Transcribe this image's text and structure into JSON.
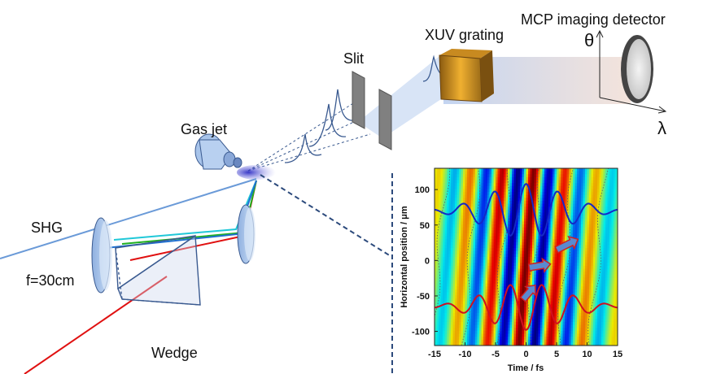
{
  "labels": {
    "mcp": "MCP imaging detector",
    "xuv": "XUV grating",
    "slit": "Slit",
    "gasjet": "Gas jet",
    "shg": "SHG",
    "focal": "f=30cm",
    "wedge": "Wedge",
    "theta": "θ",
    "lambda": "λ"
  },
  "chart_data": {
    "type": "heatmap",
    "xlabel": "Time / fs",
    "ylabel": "Horizontal position / μm",
    "xlim": [
      -15,
      15
    ],
    "ylim": [
      -120,
      130
    ],
    "xticks": [
      "-15",
      "-10",
      "-5",
      "0",
      "5",
      "10",
      "15"
    ],
    "yticks": [
      "100",
      "50",
      "0",
      "-50",
      "-100"
    ],
    "fringe_period_fs": 5.2,
    "fringe_tilt_fs_per_um": 0.01,
    "envelope_fwhm_fs": 12,
    "series": [
      {
        "color": "#1428c8",
        "baseline_um": 70,
        "amplitude_um": 38
      },
      {
        "color": "#d01020",
        "baseline_um": -65,
        "amplitude_um": 33
      }
    ],
    "arrows": [
      {
        "from": [
          -0.5,
          -55
        ],
        "to": [
          1.5,
          -35
        ]
      },
      {
        "from": [
          0.5,
          -10
        ],
        "to": [
          4,
          -5
        ]
      },
      {
        "from": [
          5,
          15
        ],
        "to": [
          8.5,
          30
        ]
      }
    ],
    "colors": {
      "heat_positive": "#c81010",
      "heat_negative": "#10106e",
      "background": "#22d0d0"
    }
  }
}
